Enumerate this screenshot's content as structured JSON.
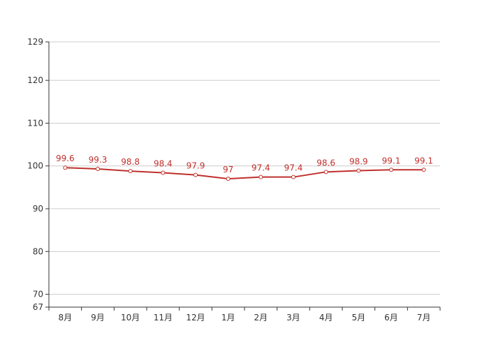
{
  "chart_data": {
    "type": "line",
    "title": "",
    "xlabel": "",
    "ylabel": "",
    "categories": [
      "8月",
      "9月",
      "10月",
      "11月",
      "12月",
      "1月",
      "2月",
      "3月",
      "4月",
      "5月",
      "6月",
      "7月"
    ],
    "series": [
      {
        "values": [
          99.6,
          99.3,
          98.8,
          98.4,
          97.9,
          97,
          97.4,
          97.4,
          98.6,
          98.9,
          99.1,
          99.1
        ],
        "labels": [
          "99.6",
          "99.3",
          "98.8",
          "98.4",
          "97.9",
          "97",
          "97.4",
          "97.4",
          "98.6",
          "98.9",
          "99.1",
          "99.1"
        ],
        "color": "#c0302c"
      }
    ],
    "yticks": [
      67,
      70,
      80,
      90,
      100,
      110,
      120,
      129
    ],
    "ytick_labels": [
      "67",
      "70",
      "80",
      "90",
      "100",
      "110",
      "120",
      "129"
    ],
    "ylim": [
      67,
      129
    ],
    "grid": true,
    "legend": "none",
    "gridline_color": "#cccccc",
    "axis_color": "#333333"
  }
}
